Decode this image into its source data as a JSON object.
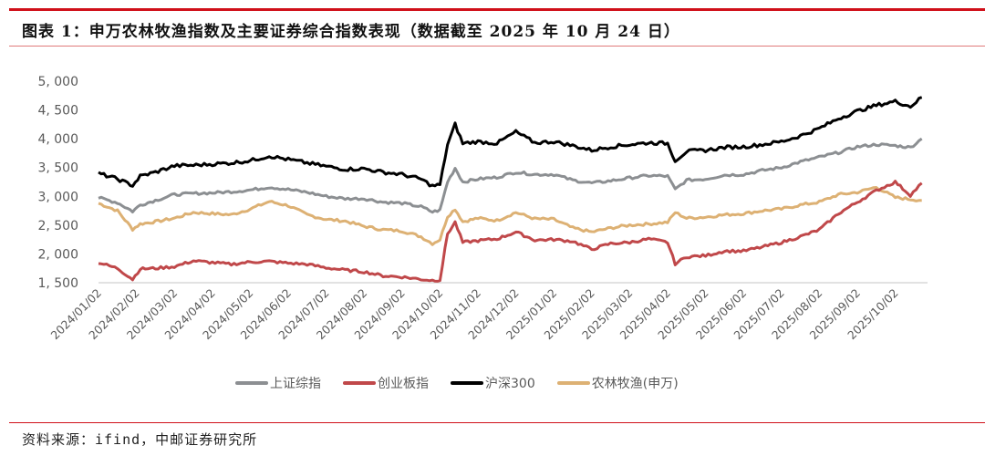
{
  "header": {
    "title": "图表 1：申万农林牧渔指数及主要证券综合指数表现（数据截至 2025 年 10 月 24 日）"
  },
  "footer": {
    "source": "资料来源：ifind，中邮证券研究所"
  },
  "colors": {
    "accent_rule": "#d0101a",
    "上证综指": "#8c8f92",
    "创业板指": "#c0484a",
    "沪深300": "#000000",
    "农林牧渔(申万)": "#ddb174"
  },
  "chart_data": {
    "type": "line",
    "title": "申万农林牧渔指数及主要证券综合指数表现（数据截至 2025 年 10 月 24 日）",
    "xlabel": "",
    "ylabel": "",
    "ylim": [
      1500,
      5000
    ],
    "yticks": [
      1500,
      2000,
      2500,
      3000,
      3500,
      4000,
      4500,
      5000
    ],
    "ytick_labels": [
      "1, 500",
      "2, 000",
      "2, 500",
      "3, 000",
      "3, 500",
      "4, 000",
      "4, 500",
      "5, 000"
    ],
    "xtick_labels": [
      "2024/01/02",
      "2024/02/02",
      "2024/03/02",
      "2024/04/02",
      "2024/05/02",
      "2024/06/02",
      "2024/07/02",
      "2024/08/02",
      "2024/09/02",
      "2024/10/02",
      "2024/11/02",
      "2024/12/02",
      "2025/01/02",
      "2025/02/02",
      "2025/03/02",
      "2025/04/02",
      "2025/05/02",
      "2025/06/02",
      "2025/07/02",
      "2025/08/02",
      "2025/09/02",
      "2025/10/02"
    ],
    "grid": false,
    "legend_position": "bottom",
    "x": [
      0,
      0.5,
      0.9,
      1.1,
      1.5,
      2,
      2.5,
      3,
      3.5,
      4,
      4.5,
      5,
      5.5,
      6,
      6.5,
      7,
      7.5,
      8,
      8.5,
      8.8,
      9.0,
      9.2,
      9.4,
      9.6,
      10,
      10.5,
      11,
      11.5,
      12,
      12.5,
      13,
      13.5,
      14,
      14.5,
      15,
      15.2,
      15.5,
      16,
      16.5,
      17,
      17.5,
      18,
      18.5,
      19,
      19.5,
      20,
      20.5,
      21,
      21.4,
      21.7
    ],
    "series": [
      {
        "name": "上证综指",
        "values": [
          2975,
          2890,
          2740,
          2850,
          2930,
          3030,
          3050,
          3060,
          3080,
          3110,
          3160,
          3120,
          3070,
          3000,
          2960,
          2960,
          2900,
          2880,
          2820,
          2730,
          2760,
          3250,
          3490,
          3250,
          3300,
          3330,
          3420,
          3380,
          3380,
          3280,
          3230,
          3270,
          3320,
          3360,
          3350,
          3120,
          3280,
          3300,
          3370,
          3380,
          3450,
          3500,
          3600,
          3680,
          3760,
          3860,
          3900,
          3880,
          3850,
          4000
        ]
      },
      {
        "name": "创业板指",
        "values": [
          1850,
          1750,
          1560,
          1740,
          1750,
          1780,
          1880,
          1850,
          1820,
          1860,
          1870,
          1840,
          1820,
          1760,
          1720,
          1690,
          1620,
          1600,
          1560,
          1540,
          1550,
          2350,
          2550,
          2200,
          2230,
          2260,
          2380,
          2240,
          2250,
          2220,
          2080,
          2180,
          2200,
          2260,
          2200,
          1830,
          1950,
          1970,
          2050,
          2050,
          2120,
          2200,
          2300,
          2420,
          2700,
          2900,
          3100,
          3250,
          3020,
          3230
        ]
      },
      {
        "name": "沪深300",
        "values": [
          3400,
          3300,
          3190,
          3350,
          3420,
          3530,
          3540,
          3560,
          3580,
          3620,
          3700,
          3640,
          3580,
          3520,
          3470,
          3480,
          3420,
          3380,
          3300,
          3180,
          3200,
          3900,
          4250,
          3920,
          3950,
          3920,
          4120,
          3930,
          3950,
          3880,
          3800,
          3860,
          3900,
          3930,
          3920,
          3620,
          3780,
          3800,
          3850,
          3860,
          3900,
          3950,
          4050,
          4180,
          4350,
          4480,
          4580,
          4650,
          4560,
          4720
        ]
      },
      {
        "name": "农林牧渔(申万)",
        "values": [
          2880,
          2750,
          2430,
          2520,
          2560,
          2620,
          2720,
          2700,
          2680,
          2780,
          2910,
          2840,
          2680,
          2600,
          2570,
          2480,
          2420,
          2400,
          2300,
          2180,
          2250,
          2650,
          2780,
          2560,
          2620,
          2580,
          2720,
          2610,
          2600,
          2450,
          2380,
          2450,
          2500,
          2520,
          2550,
          2720,
          2620,
          2640,
          2680,
          2700,
          2750,
          2780,
          2850,
          2900,
          3030,
          3070,
          3160,
          2980,
          2950,
          2930
        ]
      }
    ]
  }
}
